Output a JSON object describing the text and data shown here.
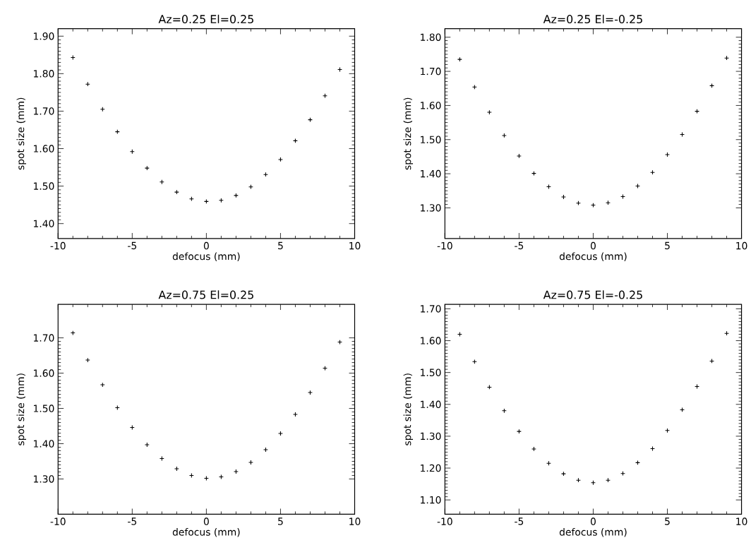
{
  "chart_data": [
    {
      "type": "scatter",
      "title": "Az=0.25  El=0.25",
      "xlabel": "defocus (mm)",
      "ylabel": "spot size (mm)",
      "marker": "cross",
      "x": [
        -9,
        -8,
        -7,
        -6,
        -5,
        -4,
        -3,
        -2,
        -1,
        0,
        1,
        2,
        3,
        4,
        5,
        6,
        7,
        8,
        9
      ],
      "series": [
        {
          "color": "#000000",
          "values": [
            1.843,
            1.772,
            1.705,
            1.645,
            1.592,
            1.548,
            1.511,
            1.484,
            1.466,
            1.459,
            1.462,
            1.475,
            1.498,
            1.531,
            1.571,
            1.621,
            1.677,
            1.741,
            1.811
          ]
        }
      ],
      "xlim": [
        -10,
        10
      ],
      "xticks": [
        -10,
        -5,
        0,
        5,
        10
      ],
      "ylim": [
        1.36,
        1.92
      ],
      "yticks": [
        {
          "value": 1.4,
          "label": "1.40"
        },
        {
          "value": 1.5,
          "label": "1.50"
        },
        {
          "value": 1.6,
          "label": "1.60"
        },
        {
          "value": 1.7,
          "label": "1.70"
        },
        {
          "value": 1.8,
          "label": "1.80"
        },
        {
          "value": 1.9,
          "label": "1.90"
        }
      ]
    },
    {
      "type": "scatter",
      "title": "Az=0.25  El=-0.25",
      "xlabel": "defocus (mm)",
      "ylabel": "spot size (mm)",
      "marker": "cross",
      "x": [
        -9,
        -8,
        -7,
        -6,
        -5,
        -4,
        -3,
        -2,
        -1,
        0,
        1,
        2,
        3,
        4,
        5,
        6,
        7,
        8,
        9
      ],
      "series": [
        {
          "color": "#000000",
          "values": [
            1.735,
            1.654,
            1.58,
            1.512,
            1.452,
            1.401,
            1.362,
            1.332,
            1.314,
            1.308,
            1.315,
            1.333,
            1.364,
            1.404,
            1.456,
            1.515,
            1.583,
            1.658,
            1.739
          ]
        }
      ],
      "xlim": [
        -10,
        10
      ],
      "xticks": [
        -10,
        -5,
        0,
        5,
        10
      ],
      "ylim": [
        1.21,
        1.825
      ],
      "yticks": [
        {
          "value": 1.3,
          "label": "1.30"
        },
        {
          "value": 1.4,
          "label": "1.40"
        },
        {
          "value": 1.5,
          "label": "1.50"
        },
        {
          "value": 1.6,
          "label": "1.60"
        },
        {
          "value": 1.7,
          "label": "1.70"
        },
        {
          "value": 1.8,
          "label": "1.80"
        }
      ]
    },
    {
      "type": "scatter",
      "title": "Az=0.75  El=0.25",
      "xlabel": "defocus (mm)",
      "ylabel": "spot size (mm)",
      "marker": "cross",
      "x": [
        -9,
        -8,
        -7,
        -6,
        -5,
        -4,
        -3,
        -2,
        -1,
        0,
        1,
        2,
        3,
        4,
        5,
        6,
        7,
        8,
        9
      ],
      "series": [
        {
          "color": "#000000",
          "values": [
            1.714,
            1.637,
            1.567,
            1.502,
            1.446,
            1.397,
            1.358,
            1.329,
            1.31,
            1.302,
            1.306,
            1.321,
            1.347,
            1.383,
            1.429,
            1.483,
            1.545,
            1.614,
            1.688
          ]
        }
      ],
      "xlim": [
        -10,
        10
      ],
      "xticks": [
        -10,
        -5,
        0,
        5,
        10
      ],
      "ylim": [
        1.2,
        1.795
      ],
      "yticks": [
        {
          "value": 1.3,
          "label": "1.30"
        },
        {
          "value": 1.4,
          "label": "1.40"
        },
        {
          "value": 1.5,
          "label": "1.50"
        },
        {
          "value": 1.6,
          "label": "1.60"
        },
        {
          "value": 1.7,
          "label": "1.70"
        }
      ]
    },
    {
      "type": "scatter",
      "title": "Az=0.75  El=-0.25",
      "xlabel": "defocus (mm)",
      "ylabel": "spot size (mm)",
      "marker": "cross",
      "x": [
        -9,
        -8,
        -7,
        -6,
        -5,
        -4,
        -3,
        -2,
        -1,
        0,
        1,
        2,
        3,
        4,
        5,
        6,
        7,
        8,
        9
      ],
      "series": [
        {
          "color": "#000000",
          "values": [
            1.62,
            1.534,
            1.454,
            1.38,
            1.315,
            1.26,
            1.215,
            1.182,
            1.162,
            1.154,
            1.162,
            1.183,
            1.217,
            1.261,
            1.318,
            1.383,
            1.456,
            1.536,
            1.623
          ]
        }
      ],
      "xlim": [
        -10,
        10
      ],
      "xticks": [
        -10,
        -5,
        0,
        5,
        10
      ],
      "ylim": [
        1.055,
        1.714
      ],
      "yticks": [
        {
          "value": 1.1,
          "label": "1.10"
        },
        {
          "value": 1.2,
          "label": "1.20"
        },
        {
          "value": 1.3,
          "label": "1.30"
        },
        {
          "value": 1.4,
          "label": "1.40"
        },
        {
          "value": 1.5,
          "label": "1.50"
        },
        {
          "value": 1.6,
          "label": "1.60"
        },
        {
          "value": 1.7,
          "label": "1.70"
        }
      ]
    }
  ]
}
